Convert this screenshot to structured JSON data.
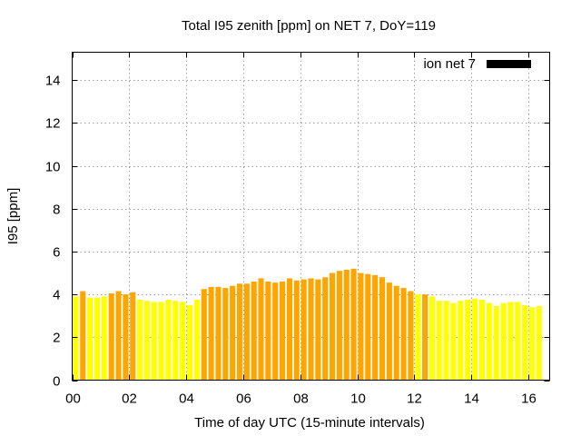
{
  "chart_data": {
    "type": "bar",
    "title": "Total I95 zenith [ppm] on NET 7, DoY=119",
    "xlabel": "Time of day UTC (15-minute intervals)",
    "ylabel": "I95 [ppm]",
    "xlim": [
      0,
      16.75
    ],
    "ylim": [
      0,
      15.3
    ],
    "xticks": [
      "00",
      "02",
      "04",
      "06",
      "08",
      "10",
      "12",
      "14",
      "16"
    ],
    "xtick_values": [
      0,
      2,
      4,
      6,
      8,
      10,
      12,
      14,
      16
    ],
    "yticks": [
      "0",
      "2",
      "4",
      "6",
      "8",
      "10",
      "12",
      "14"
    ],
    "ytick_values": [
      0,
      2,
      4,
      6,
      8,
      10,
      12,
      14
    ],
    "grid": true,
    "legend": {
      "label": "ion net 7",
      "placement": "top-right",
      "color": "#000000"
    },
    "colors": {
      "yellow": "#ffff00",
      "orange": "#ffa500"
    },
    "bar_interval_hours": 0.25,
    "values": [
      3.9,
      4.15,
      3.85,
      3.85,
      3.9,
      4.05,
      4.15,
      4.0,
      4.1,
      3.75,
      3.7,
      3.65,
      3.65,
      3.75,
      3.7,
      3.65,
      3.5,
      3.75,
      4.25,
      4.35,
      4.35,
      4.3,
      4.4,
      4.5,
      4.5,
      4.6,
      4.75,
      4.6,
      4.55,
      4.6,
      4.75,
      4.65,
      4.7,
      4.75,
      4.7,
      4.8,
      5.0,
      5.1,
      5.15,
      5.2,
      5.0,
      4.95,
      4.9,
      4.8,
      4.55,
      4.4,
      4.3,
      4.15,
      4.0,
      4.0,
      3.9,
      3.7,
      3.7,
      3.6,
      3.7,
      3.75,
      3.8,
      3.75,
      3.6,
      3.45,
      3.6,
      3.65,
      3.65,
      3.5,
      3.4,
      3.45
    ],
    "bar_colors": [
      "yellow",
      "orange",
      "yellow",
      "yellow",
      "yellow",
      "orange",
      "orange",
      "orange",
      "orange",
      "yellow",
      "yellow",
      "yellow",
      "yellow",
      "yellow",
      "yellow",
      "yellow",
      "yellow",
      "yellow",
      "orange",
      "orange",
      "orange",
      "orange",
      "orange",
      "orange",
      "orange",
      "orange",
      "orange",
      "orange",
      "orange",
      "orange",
      "orange",
      "orange",
      "orange",
      "orange",
      "orange",
      "orange",
      "orange",
      "orange",
      "orange",
      "orange",
      "orange",
      "orange",
      "orange",
      "orange",
      "orange",
      "orange",
      "orange",
      "orange",
      "yellow",
      "orange",
      "yellow",
      "yellow",
      "yellow",
      "yellow",
      "yellow",
      "yellow",
      "yellow",
      "yellow",
      "yellow",
      "yellow",
      "yellow",
      "yellow",
      "yellow",
      "yellow",
      "yellow",
      "yellow"
    ]
  }
}
